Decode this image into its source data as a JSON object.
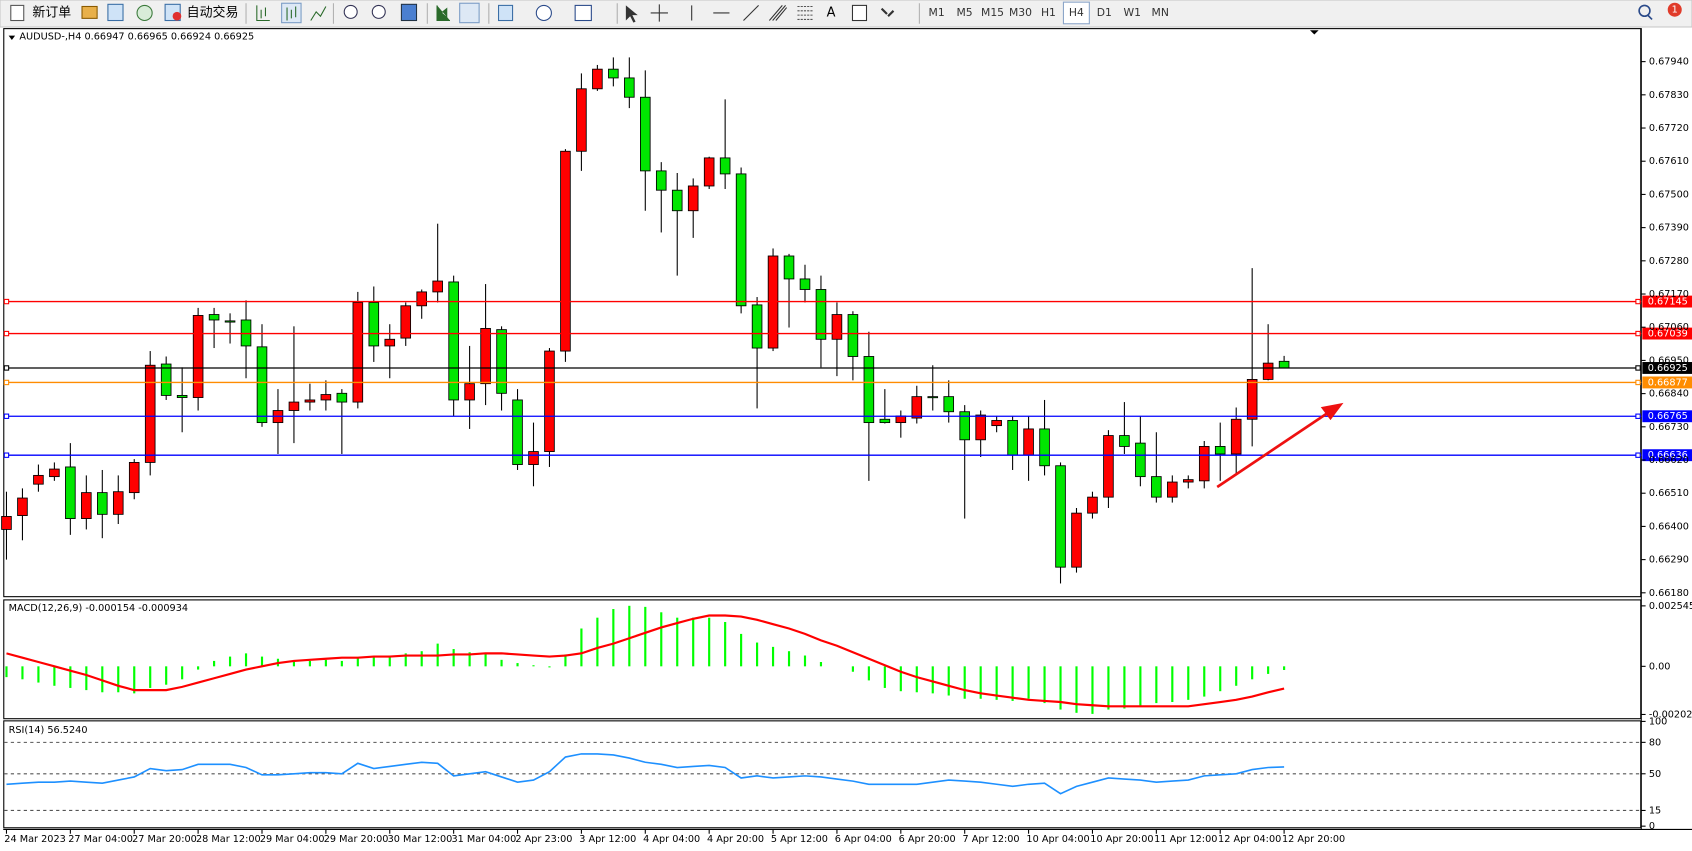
{
  "toolbar": {
    "new_order": "新订单",
    "auto_trading": "自动交易",
    "timeframes": [
      "M1",
      "M5",
      "M15",
      "M30",
      "H1",
      "H4",
      "D1",
      "W1",
      "MN"
    ],
    "active_timeframe": "H4",
    "notification_count": 1
  },
  "chart_data": [
    {
      "type": "candlestick",
      "symbol": "AUDUSD-,H4",
      "categories": [
        "24 Mar 2023",
        null,
        null,
        null,
        "27 Mar 04:00",
        null,
        null,
        null,
        "27 Mar 20:00",
        null,
        null,
        null,
        "28 Mar 12:00",
        null,
        null,
        null,
        "29 Mar 04:00",
        null,
        null,
        null,
        "29 Mar 20:00",
        null,
        null,
        null,
        "30 Mar 12:00",
        null,
        null,
        null,
        "31 Mar 04:00",
        null,
        null,
        null,
        "2 Apr 23:00",
        null,
        null,
        null,
        "3 Apr 12:00",
        null,
        null,
        null,
        "4 Apr 04:00",
        null,
        null,
        null,
        "4 Apr 20:00",
        null,
        null,
        null,
        "5 Apr 12:00",
        null,
        null,
        null,
        "6 Apr 04:00",
        null,
        null,
        null,
        "6 Apr 20:00",
        null,
        null,
        null,
        "7 Apr 12:00",
        null,
        null,
        null,
        "10 Apr 04:00",
        null,
        null,
        null,
        "10 Apr 20:00",
        null,
        null,
        null,
        "11 Apr 12:00",
        null,
        null,
        null,
        "12 Apr 04:00",
        null,
        null,
        null,
        "12 Apr 20:00"
      ],
      "open": [
        0.6639,
        0.66436,
        0.6654,
        0.66565,
        0.66597,
        0.66426,
        0.66512,
        0.6644,
        0.66512,
        0.66612,
        0.66938,
        0.66834,
        0.66827,
        0.67102,
        0.67081,
        0.67084,
        0.66995,
        0.66744,
        0.66784,
        0.66812,
        0.66819,
        0.66841,
        0.66812,
        0.67142,
        0.66998,
        0.67024,
        0.67131,
        0.67177,
        0.6721,
        0.66819,
        0.66873,
        0.67052,
        0.66819,
        0.66605,
        0.66648,
        0.66981,
        0.67643,
        0.6785,
        0.67915,
        0.67886,
        0.67822,
        0.67578,
        0.67514,
        0.67446,
        0.67528,
        0.67621,
        0.67568,
        0.67134,
        0.66991,
        0.67296,
        0.6722,
        0.67185,
        0.6702,
        0.67102,
        0.66963,
        0.66755,
        0.66744,
        0.66759,
        0.6683,
        0.6683,
        0.6678,
        0.66687,
        0.66734,
        0.66751,
        0.66637,
        0.66723,
        0.66601,
        0.66265,
        0.66444,
        0.66497,
        0.66701,
        0.66676,
        0.66565,
        0.66497,
        0.66547,
        0.66551,
        0.66665,
        0.6664,
        0.66755,
        0.66887,
        0.66947
      ],
      "high": [
        0.66515,
        0.66526,
        0.66605,
        0.66612,
        0.66676,
        0.66569,
        0.66587,
        0.66569,
        0.66623,
        0.66981,
        0.66963,
        0.66927,
        0.67124,
        0.67124,
        0.67106,
        0.67149,
        0.6707,
        0.66855,
        0.67063,
        0.66873,
        0.66884,
        0.66855,
        0.67177,
        0.67195,
        0.6707,
        0.67142,
        0.67185,
        0.67403,
        0.67231,
        0.66998,
        0.67203,
        0.67063,
        0.66855,
        0.66744,
        0.66991,
        0.6765,
        0.67901,
        0.67929,
        0.67954,
        0.67954,
        0.67911,
        0.67607,
        0.67571,
        0.67553,
        0.67625,
        0.67815,
        0.67589,
        0.6716,
        0.67321,
        0.67303,
        0.67267,
        0.67231,
        0.67142,
        0.67113,
        0.67045,
        0.66855,
        0.66784,
        0.66866,
        0.66934,
        0.66884,
        0.66802,
        0.66784,
        0.66766,
        0.66766,
        0.66766,
        0.66819,
        0.66612,
        0.66461,
        0.66515,
        0.66719,
        0.66812,
        0.66766,
        0.66712,
        0.66569,
        0.66569,
        0.66683,
        0.66744,
        0.66794,
        0.67256,
        0.6707,
        0.66965
      ],
      "low": [
        0.6629,
        0.66354,
        0.66515,
        0.66551,
        0.66372,
        0.6639,
        0.66361,
        0.66408,
        0.6649,
        0.66569,
        0.66819,
        0.66712,
        0.66784,
        0.66991,
        0.67006,
        0.66891,
        0.6673,
        0.6664,
        0.66676,
        0.66784,
        0.66784,
        0.6664,
        0.66791,
        0.66945,
        0.66891,
        0.66998,
        0.67088,
        0.67142,
        0.66766,
        0.66723,
        0.66802,
        0.66784,
        0.66587,
        0.66533,
        0.66597,
        0.66945,
        0.67578,
        0.67843,
        0.67858,
        0.67786,
        0.67446,
        0.67374,
        0.67231,
        0.67356,
        0.67518,
        0.67518,
        0.67106,
        0.66791,
        0.66981,
        0.67059,
        0.67142,
        0.66927,
        0.66898,
        0.66884,
        0.66551,
        0.66741,
        0.66694,
        0.66741,
        0.66784,
        0.66744,
        0.66426,
        0.6663,
        0.66712,
        0.66587,
        0.66551,
        0.66569,
        0.66211,
        0.66247,
        0.66426,
        0.66461,
        0.6664,
        0.66533,
        0.66479,
        0.66479,
        0.66526,
        0.66526,
        0.66551,
        0.66569,
        0.66665,
        0.66884,
        0.66924
      ],
      "close": [
        0.66433,
        0.66494,
        0.66569,
        0.6659,
        0.66426,
        0.66512,
        0.6644,
        0.66515,
        0.66612,
        0.66934,
        0.66834,
        0.66827,
        0.67099,
        0.67084,
        0.67077,
        0.66998,
        0.66744,
        0.66784,
        0.66812,
        0.66819,
        0.66837,
        0.66812,
        0.67142,
        0.66998,
        0.6702,
        0.67131,
        0.67177,
        0.67213,
        0.66819,
        0.66873,
        0.67056,
        0.66841,
        0.66605,
        0.66648,
        0.66981,
        0.67643,
        0.6785,
        0.67915,
        0.67886,
        0.67822,
        0.67578,
        0.67514,
        0.67446,
        0.67528,
        0.67621,
        0.67568,
        0.67131,
        0.66991,
        0.67296,
        0.6722,
        0.67185,
        0.6702,
        0.67102,
        0.66963,
        0.66744,
        0.66744,
        0.66766,
        0.6683,
        0.66827,
        0.6678,
        0.66687,
        0.66769,
        0.66751,
        0.66637,
        0.66723,
        0.66601,
        0.66265,
        0.66444,
        0.66497,
        0.66701,
        0.66665,
        0.66565,
        0.66497,
        0.66547,
        0.66555,
        0.66665,
        0.6664,
        0.66755,
        0.66887,
        0.66941,
        0.66925
      ],
      "up_color": "#ff0000",
      "down_color": "#00e600",
      "ylim": [
        0.66169,
        0.68044
      ],
      "yticks": [
        {
          "value": 0.6794,
          "label": "0.67940"
        },
        {
          "value": 0.6783,
          "label": "0.67830"
        },
        {
          "value": 0.6772,
          "label": "0.67720"
        },
        {
          "value": 0.6761,
          "label": "0.67610"
        },
        {
          "value": 0.675,
          "label": "0.67500"
        },
        {
          "value": 0.6739,
          "label": "0.67390"
        },
        {
          "value": 0.6728,
          "label": "0.67280"
        },
        {
          "value": 0.6717,
          "label": "0.67170"
        },
        {
          "value": 0.6706,
          "label": "0.67060"
        },
        {
          "value": 0.6695,
          "label": "0.66950"
        },
        {
          "value": 0.6684,
          "label": "0.66840"
        },
        {
          "value": 0.6673,
          "label": "0.66730"
        },
        {
          "value": 0.6662,
          "label": "0.66620"
        },
        {
          "value": 0.6651,
          "label": "0.66510"
        },
        {
          "value": 0.664,
          "label": "0.66400"
        },
        {
          "value": 0.6629,
          "label": "0.66290"
        },
        {
          "value": 0.6618,
          "label": "0.66180"
        }
      ],
      "lines": [
        {
          "value": 0.67145,
          "color": "#ff0000"
        },
        {
          "value": 0.67039,
          "color": "#ff0000"
        },
        {
          "value": 0.66925,
          "color": "#000000"
        },
        {
          "value": 0.66877,
          "color": "#ff8c00"
        },
        {
          "value": 0.66765,
          "color": "#0000ff"
        },
        {
          "value": 0.66636,
          "color": "#0000ff"
        }
      ]
    },
    {
      "type": "macd",
      "name": "MACD(12,26,9)",
      "histogram": [
        -0.000455,
        -0.000546,
        -0.000683,
        -0.000819,
        -0.00091,
        -0.001001,
        -0.001092,
        -0.001092,
        -0.001138,
        -0.00091,
        -0.000774,
        -0.000546,
        -0.000137,
        0.000228,
        0.00041,
        0.000546,
        0.00041,
        0.000319,
        0.000228,
        0.000228,
        0.000273,
        0.000228,
        0.000364,
        0.00041,
        0.00041,
        0.000546,
        0.000637,
        0.000956,
        0.000728,
        0.000592,
        0.000501,
        0.000273,
        0.000137,
        4.6e-05,
        -4.6e-05,
        0.000501,
        0.001593,
        0.002048,
        0.002412,
        0.002548,
        0.002503,
        0.002275,
        0.002048,
        0.002048,
        0.002048,
        0.001866,
        0.001365,
        0.001001,
        0.000819,
        0.000637,
        0.000455,
        0.000182,
        0,
        -0.000228,
        -0.000592,
        -0.00091,
        -0.001047,
        -0.001092,
        -0.001138,
        -0.001229,
        -0.001365,
        -0.001365,
        -0.001411,
        -0.001456,
        -0.001365,
        -0.001547,
        -0.00182,
        -0.001957,
        -0.002002,
        -0.00182,
        -0.001775,
        -0.001684,
        -0.001547,
        -0.001502,
        -0.001411,
        -0.001274,
        -0.001047,
        -0.000819,
        -0.000546,
        -0.000319,
        -0.000154
      ],
      "signal": [
        0.000546,
        0.000364,
        0.000182,
        0,
        -0.000182,
        -0.000364,
        -0.000592,
        -0.000819,
        -0.001001,
        -0.001001,
        -0.001001,
        -0.000865,
        -0.000683,
        -0.000501,
        -0.000319,
        -0.000137,
        0,
        0.000137,
        0.000228,
        0.000273,
        0.000319,
        0.000364,
        0.000364,
        0.00041,
        0.00041,
        0.000455,
        0.000455,
        0.000455,
        0.000501,
        0.000501,
        0.000546,
        0.000546,
        0.000501,
        0.000455,
        0.00041,
        0.000455,
        0.000546,
        0.000774,
        0.000956,
        0.001183,
        0.001411,
        0.001638,
        0.00182,
        0.002002,
        0.002139,
        0.002139,
        0.002093,
        0.001957,
        0.001775,
        0.001593,
        0.001365,
        0.001092,
        0.000865,
        0.000592,
        0.000319,
        4.6e-05,
        -0.000228,
        -0.000455,
        -0.000637,
        -0.000819,
        -0.001001,
        -0.001138,
        -0.001229,
        -0.00132,
        -0.001411,
        -0.001456,
        -0.001502,
        -0.001593,
        -0.001638,
        -0.001684,
        -0.001684,
        -0.001684,
        -0.001684,
        -0.001684,
        -0.001684,
        -0.001593,
        -0.001502,
        -0.001411,
        -0.001274,
        -0.001092,
        -0.000934
      ],
      "hist_color": "#00ff00",
      "signal_color": "#ff0000",
      "ylim": [
        -0.002182,
        0.002773
      ],
      "yticks": [
        0.002545,
        {
          "value": 0,
          "label": "0.00"
        },
        -0.002026
      ]
    },
    {
      "type": "line",
      "name": "RSI(14)",
      "values": [
        40,
        41,
        42,
        42,
        43,
        42,
        41,
        44,
        47,
        55,
        53,
        54,
        59,
        59,
        59,
        56,
        49,
        49,
        50,
        51,
        51,
        50,
        60,
        55,
        57,
        59,
        61,
        60,
        48,
        50,
        52,
        47,
        42,
        44,
        52,
        66,
        69,
        69,
        68,
        65,
        61,
        59,
        56,
        57,
        58,
        56,
        46,
        48,
        46,
        47,
        48,
        47,
        45,
        43,
        40,
        40,
        40,
        40,
        42,
        44,
        43,
        42,
        40,
        38,
        40,
        41,
        31,
        38,
        42,
        46,
        45,
        44,
        42,
        43,
        44,
        48,
        49,
        50,
        54,
        56,
        56.524
      ],
      "value_label": "56.5240",
      "color": "#1e90ff",
      "ylim": [
        0,
        100
      ],
      "yticks": [
        100,
        80,
        50,
        15,
        0
      ],
      "levels": [
        80,
        50,
        15
      ]
    }
  ]
}
